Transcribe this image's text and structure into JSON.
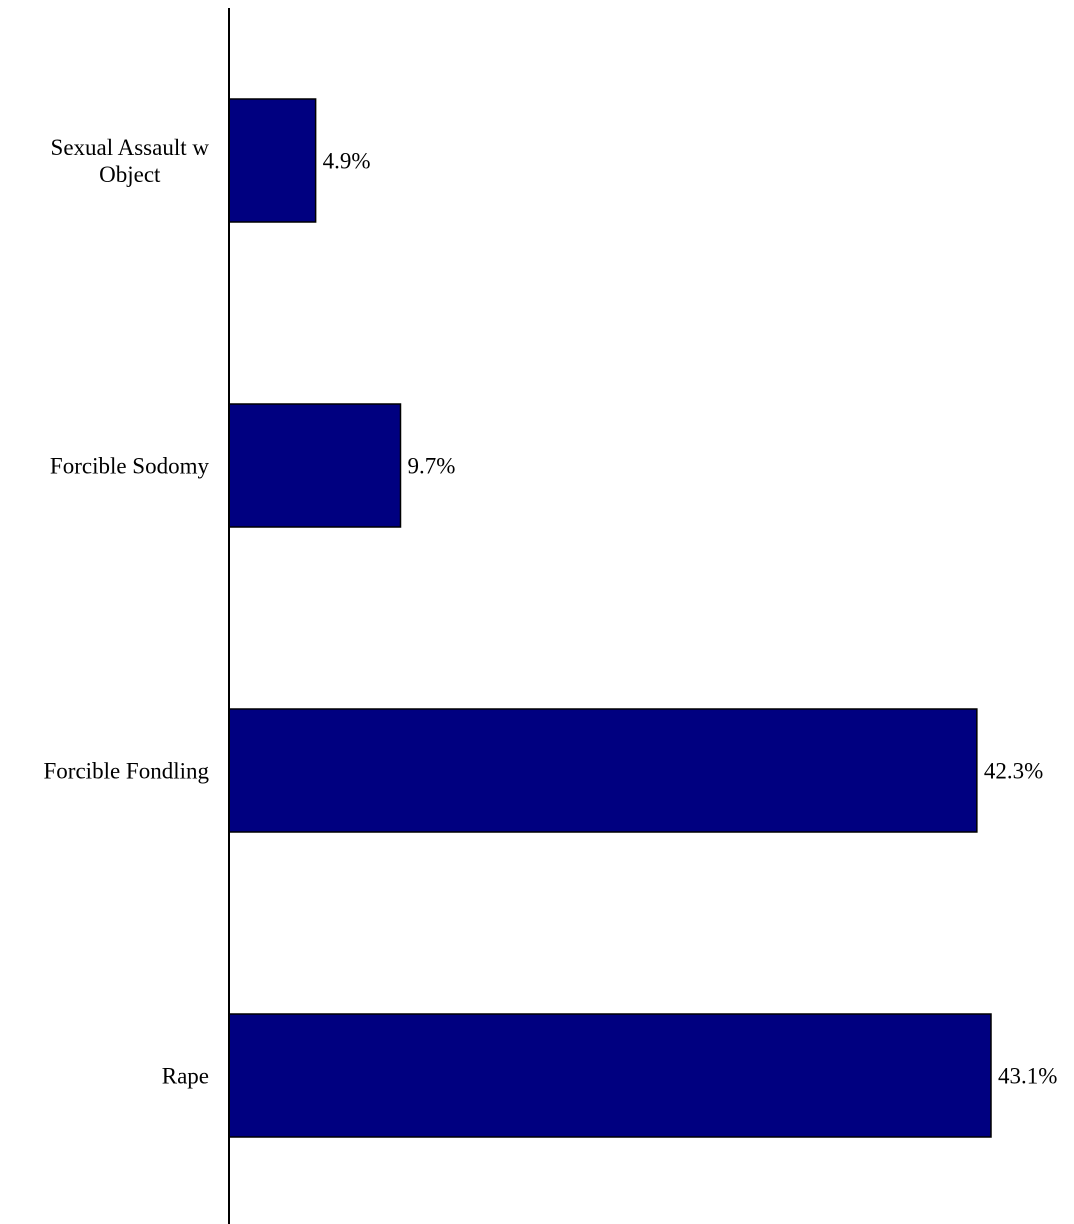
{
  "chart_data": {
    "type": "bar",
    "orientation": "horizontal",
    "categories": [
      [
        "Sexual Assault w",
        "Object"
      ],
      [
        "Forcible Sodomy"
      ],
      [
        "Forcible Fondling"
      ],
      [
        "Rape"
      ]
    ],
    "values": [
      4.9,
      9.7,
      42.3,
      43.1
    ],
    "value_labels": [
      "4.9%",
      "9.7%",
      "42.3%",
      "43.1%"
    ],
    "unit": "%",
    "xlim": [
      0,
      43.1
    ],
    "grid": false,
    "legend": "none",
    "colors": {
      "bar_fill": "#000080",
      "bar_stroke": "#000000",
      "axis": "#000000",
      "text": "#000000"
    }
  }
}
